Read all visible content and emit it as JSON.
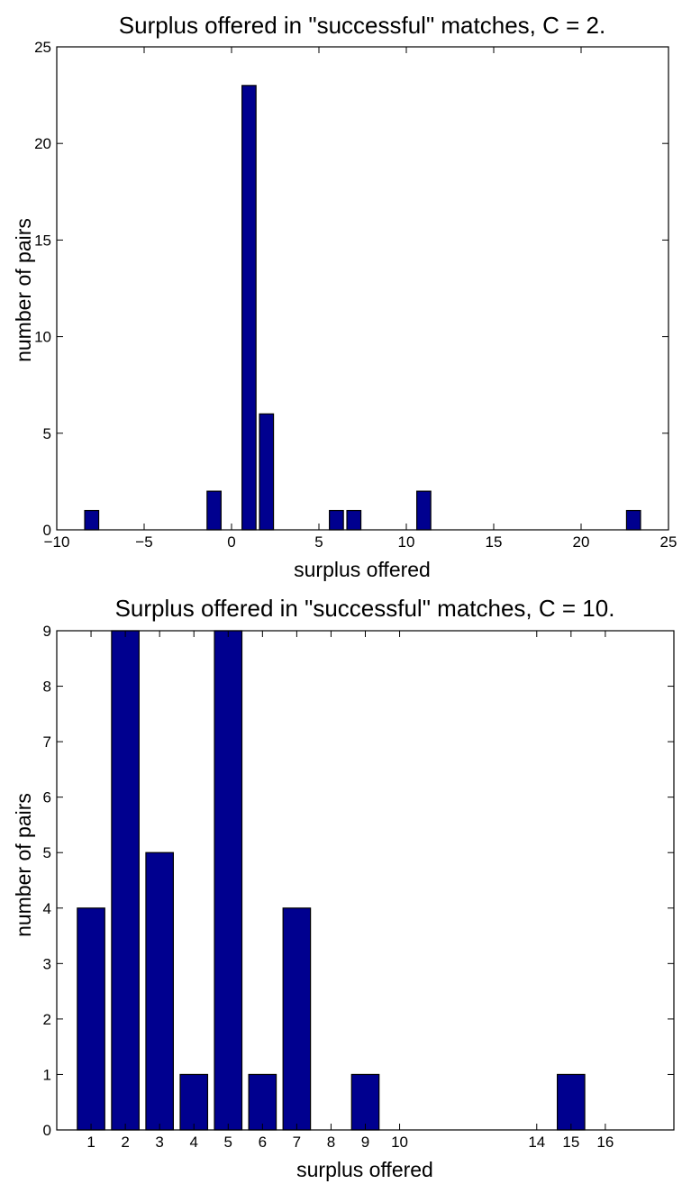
{
  "chart_data": [
    {
      "type": "bar",
      "title": "Surplus offered in \"successful\" matches, C = 2.",
      "xlabel": "surplus offered",
      "ylabel": "number of pairs",
      "xlim": [
        -10,
        25
      ],
      "ylim": [
        0,
        25
      ],
      "xticks": [
        -10,
        -5,
        0,
        5,
        10,
        15,
        20,
        25
      ],
      "xtick_labels": [
        "−10",
        "−5",
        "0",
        "5",
        "10",
        "15",
        "20",
        "25"
      ],
      "yticks": [
        0,
        5,
        10,
        15,
        20,
        25
      ],
      "ytick_labels": [
        "0",
        "5",
        "10",
        "15",
        "20",
        "25"
      ],
      "x": [
        -8,
        -1,
        1,
        2,
        6,
        7,
        11,
        23
      ],
      "values": [
        1,
        2,
        23,
        6,
        1,
        1,
        2,
        1
      ],
      "grid": false,
      "bar_color": "#00008f"
    },
    {
      "type": "bar",
      "title": "Surplus offered in \"successful\" matches, C = 10.",
      "xlabel": "surplus offered",
      "ylabel": "number of pairs",
      "xlim": [
        0,
        18
      ],
      "ylim": [
        0,
        9
      ],
      "xticks": [
        1,
        2,
        3,
        4,
        5,
        6,
        7,
        8,
        9,
        10,
        14,
        15,
        16
      ],
      "xtick_labels": [
        "1",
        "2",
        "3",
        "4",
        "5",
        "6",
        "7",
        "8",
        "9",
        "10",
        "14",
        "15",
        "16"
      ],
      "yticks": [
        0,
        1,
        2,
        3,
        4,
        5,
        6,
        7,
        8,
        9
      ],
      "ytick_labels": [
        "0",
        "1",
        "2",
        "3",
        "4",
        "5",
        "6",
        "7",
        "8",
        "9"
      ],
      "x": [
        1,
        2,
        3,
        4,
        5,
        6,
        7,
        9,
        15
      ],
      "values": [
        4,
        9,
        5,
        1,
        9,
        1,
        4,
        1,
        1
      ],
      "grid": false,
      "bar_color": "#00008f"
    }
  ]
}
